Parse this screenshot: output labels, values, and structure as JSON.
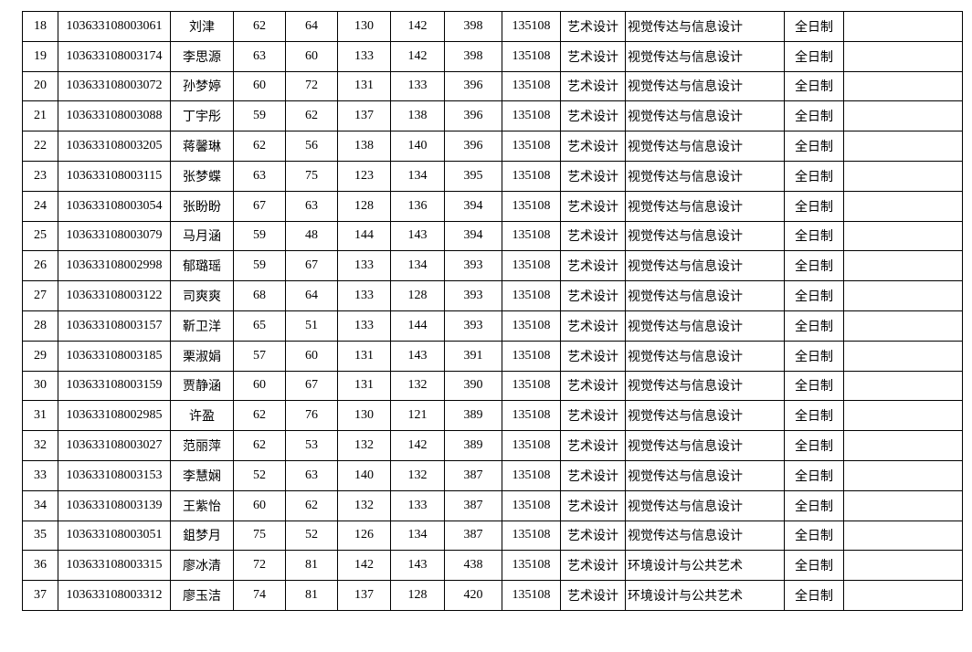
{
  "rows": [
    [
      "18",
      "103633108003061",
      "刘津",
      "62",
      "64",
      "130",
      "142",
      "398",
      "135108",
      "艺术设计",
      "视觉传达与信息设计",
      "全日制",
      ""
    ],
    [
      "19",
      "103633108003174",
      "李思源",
      "63",
      "60",
      "133",
      "142",
      "398",
      "135108",
      "艺术设计",
      "视觉传达与信息设计",
      "全日制",
      ""
    ],
    [
      "20",
      "103633108003072",
      "孙梦婷",
      "60",
      "72",
      "131",
      "133",
      "396",
      "135108",
      "艺术设计",
      "视觉传达与信息设计",
      "全日制",
      ""
    ],
    [
      "21",
      "103633108003088",
      "丁宇彤",
      "59",
      "62",
      "137",
      "138",
      "396",
      "135108",
      "艺术设计",
      "视觉传达与信息设计",
      "全日制",
      ""
    ],
    [
      "22",
      "103633108003205",
      "蒋馨琳",
      "62",
      "56",
      "138",
      "140",
      "396",
      "135108",
      "艺术设计",
      "视觉传达与信息设计",
      "全日制",
      ""
    ],
    [
      "23",
      "103633108003115",
      "张梦蝶",
      "63",
      "75",
      "123",
      "134",
      "395",
      "135108",
      "艺术设计",
      "视觉传达与信息设计",
      "全日制",
      ""
    ],
    [
      "24",
      "103633108003054",
      "张盼盼",
      "67",
      "63",
      "128",
      "136",
      "394",
      "135108",
      "艺术设计",
      "视觉传达与信息设计",
      "全日制",
      ""
    ],
    [
      "25",
      "103633108003079",
      "马月涵",
      "59",
      "48",
      "144",
      "143",
      "394",
      "135108",
      "艺术设计",
      "视觉传达与信息设计",
      "全日制",
      ""
    ],
    [
      "26",
      "103633108002998",
      "郁璐瑶",
      "59",
      "67",
      "133",
      "134",
      "393",
      "135108",
      "艺术设计",
      "视觉传达与信息设计",
      "全日制",
      ""
    ],
    [
      "27",
      "103633108003122",
      "司爽爽",
      "68",
      "64",
      "133",
      "128",
      "393",
      "135108",
      "艺术设计",
      "视觉传达与信息设计",
      "全日制",
      ""
    ],
    [
      "28",
      "103633108003157",
      "靳卫洋",
      "65",
      "51",
      "133",
      "144",
      "393",
      "135108",
      "艺术设计",
      "视觉传达与信息设计",
      "全日制",
      ""
    ],
    [
      "29",
      "103633108003185",
      "栗淑娟",
      "57",
      "60",
      "131",
      "143",
      "391",
      "135108",
      "艺术设计",
      "视觉传达与信息设计",
      "全日制",
      ""
    ],
    [
      "30",
      "103633108003159",
      "贾静涵",
      "60",
      "67",
      "131",
      "132",
      "390",
      "135108",
      "艺术设计",
      "视觉传达与信息设计",
      "全日制",
      ""
    ],
    [
      "31",
      "103633108002985",
      "许盈",
      "62",
      "76",
      "130",
      "121",
      "389",
      "135108",
      "艺术设计",
      "视觉传达与信息设计",
      "全日制",
      ""
    ],
    [
      "32",
      "103633108003027",
      "范丽萍",
      "62",
      "53",
      "132",
      "142",
      "389",
      "135108",
      "艺术设计",
      "视觉传达与信息设计",
      "全日制",
      ""
    ],
    [
      "33",
      "103633108003153",
      "李慧娴",
      "52",
      "63",
      "140",
      "132",
      "387",
      "135108",
      "艺术设计",
      "视觉传达与信息设计",
      "全日制",
      ""
    ],
    [
      "34",
      "103633108003139",
      "王紫怡",
      "60",
      "62",
      "132",
      "133",
      "387",
      "135108",
      "艺术设计",
      "视觉传达与信息设计",
      "全日制",
      ""
    ],
    [
      "35",
      "103633108003051",
      "鉏梦月",
      "75",
      "52",
      "126",
      "134",
      "387",
      "135108",
      "艺术设计",
      "视觉传达与信息设计",
      "全日制",
      ""
    ],
    [
      "36",
      "103633108003315",
      "廖冰清",
      "72",
      "81",
      "142",
      "143",
      "438",
      "135108",
      "艺术设计",
      "环境设计与公共艺术",
      "全日制",
      ""
    ],
    [
      "37",
      "103633108003312",
      "廖玉洁",
      "74",
      "81",
      "137",
      "128",
      "420",
      "135108",
      "艺术设计",
      "环境设计与公共艺术",
      "全日制",
      ""
    ]
  ]
}
